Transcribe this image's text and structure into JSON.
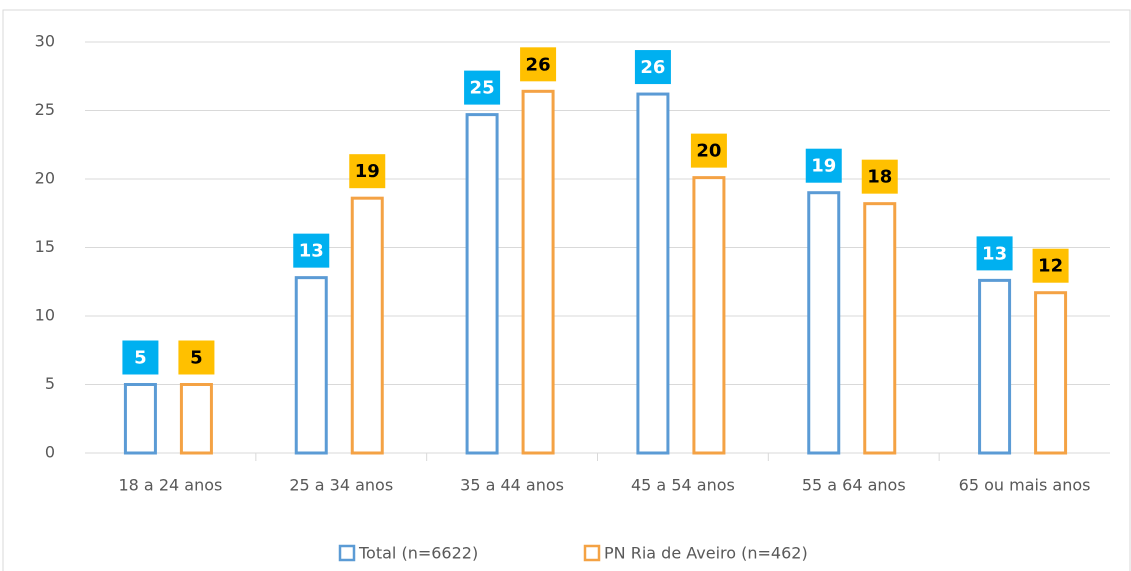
{
  "chart_data": {
    "type": "bar",
    "categories": [
      "18 a 24 anos",
      "25 a 34 anos",
      "35 a 44 anos",
      "45 a 54 anos",
      "55 a 64 anos",
      "65 ou mais anos"
    ],
    "series": [
      {
        "name": "Total (n=6622)",
        "color": "#5b9bd5",
        "label_color": "#00b0f0",
        "label_text_color": "#ffffff",
        "values": [
          5.0,
          12.8,
          24.7,
          26.2,
          19.0,
          12.6
        ],
        "value_labels": [
          "5",
          "13",
          "25",
          "26",
          "19",
          "13"
        ]
      },
      {
        "name": "PN Ria de Aveiro (n=462)",
        "color": "#f4a244",
        "label_color": "#ffc000",
        "label_text_color": "#000000",
        "values": [
          5.0,
          18.6,
          26.4,
          20.1,
          18.2,
          11.7
        ],
        "value_labels": [
          "5",
          "19",
          "26",
          "20",
          "18",
          "12"
        ]
      }
    ],
    "ylim": [
      0,
      30
    ],
    "yticks": [
      0,
      5,
      10,
      15,
      20,
      25,
      30
    ],
    "grid": true,
    "legend": "bottom"
  }
}
